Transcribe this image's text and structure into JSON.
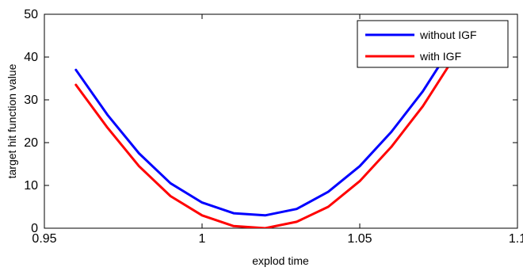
{
  "chart_data": {
    "type": "line",
    "title": "",
    "xlabel": "explod time",
    "ylabel": "target hit function value",
    "xlim": [
      0.95,
      1.1
    ],
    "ylim": [
      0,
      50
    ],
    "x_ticks": [
      0.95,
      1,
      1.05,
      1.1
    ],
    "x_tick_labels": [
      "0.95",
      "1",
      "1.05",
      "1.1"
    ],
    "y_ticks": [
      0,
      10,
      20,
      30,
      40,
      50
    ],
    "y_tick_labels": [
      "0",
      "10",
      "20",
      "30",
      "40",
      "50"
    ],
    "grid": false,
    "legend": {
      "position": "top-right",
      "entries": [
        "without IGF",
        "with IGF"
      ]
    },
    "series": [
      {
        "name": "without IGF",
        "color": "#0000ff",
        "x": [
          0.96,
          0.97,
          0.98,
          0.99,
          1.0,
          1.01,
          1.02,
          1.03,
          1.04,
          1.05,
          1.06,
          1.07,
          1.08
        ],
        "values": [
          37.0,
          26.5,
          17.5,
          10.5,
          6.0,
          3.5,
          3.0,
          4.5,
          8.5,
          14.5,
          22.5,
          32.0,
          43.5
        ]
      },
      {
        "name": "with IGF",
        "color": "#ff0000",
        "x": [
          0.96,
          0.97,
          0.98,
          0.99,
          1.0,
          1.01,
          1.02,
          1.03,
          1.04,
          1.05,
          1.06,
          1.07,
          1.08
        ],
        "values": [
          33.5,
          23.5,
          14.5,
          7.5,
          3.0,
          0.5,
          0.0,
          1.5,
          5.0,
          11.0,
          19.0,
          28.5,
          40.0
        ]
      }
    ]
  }
}
